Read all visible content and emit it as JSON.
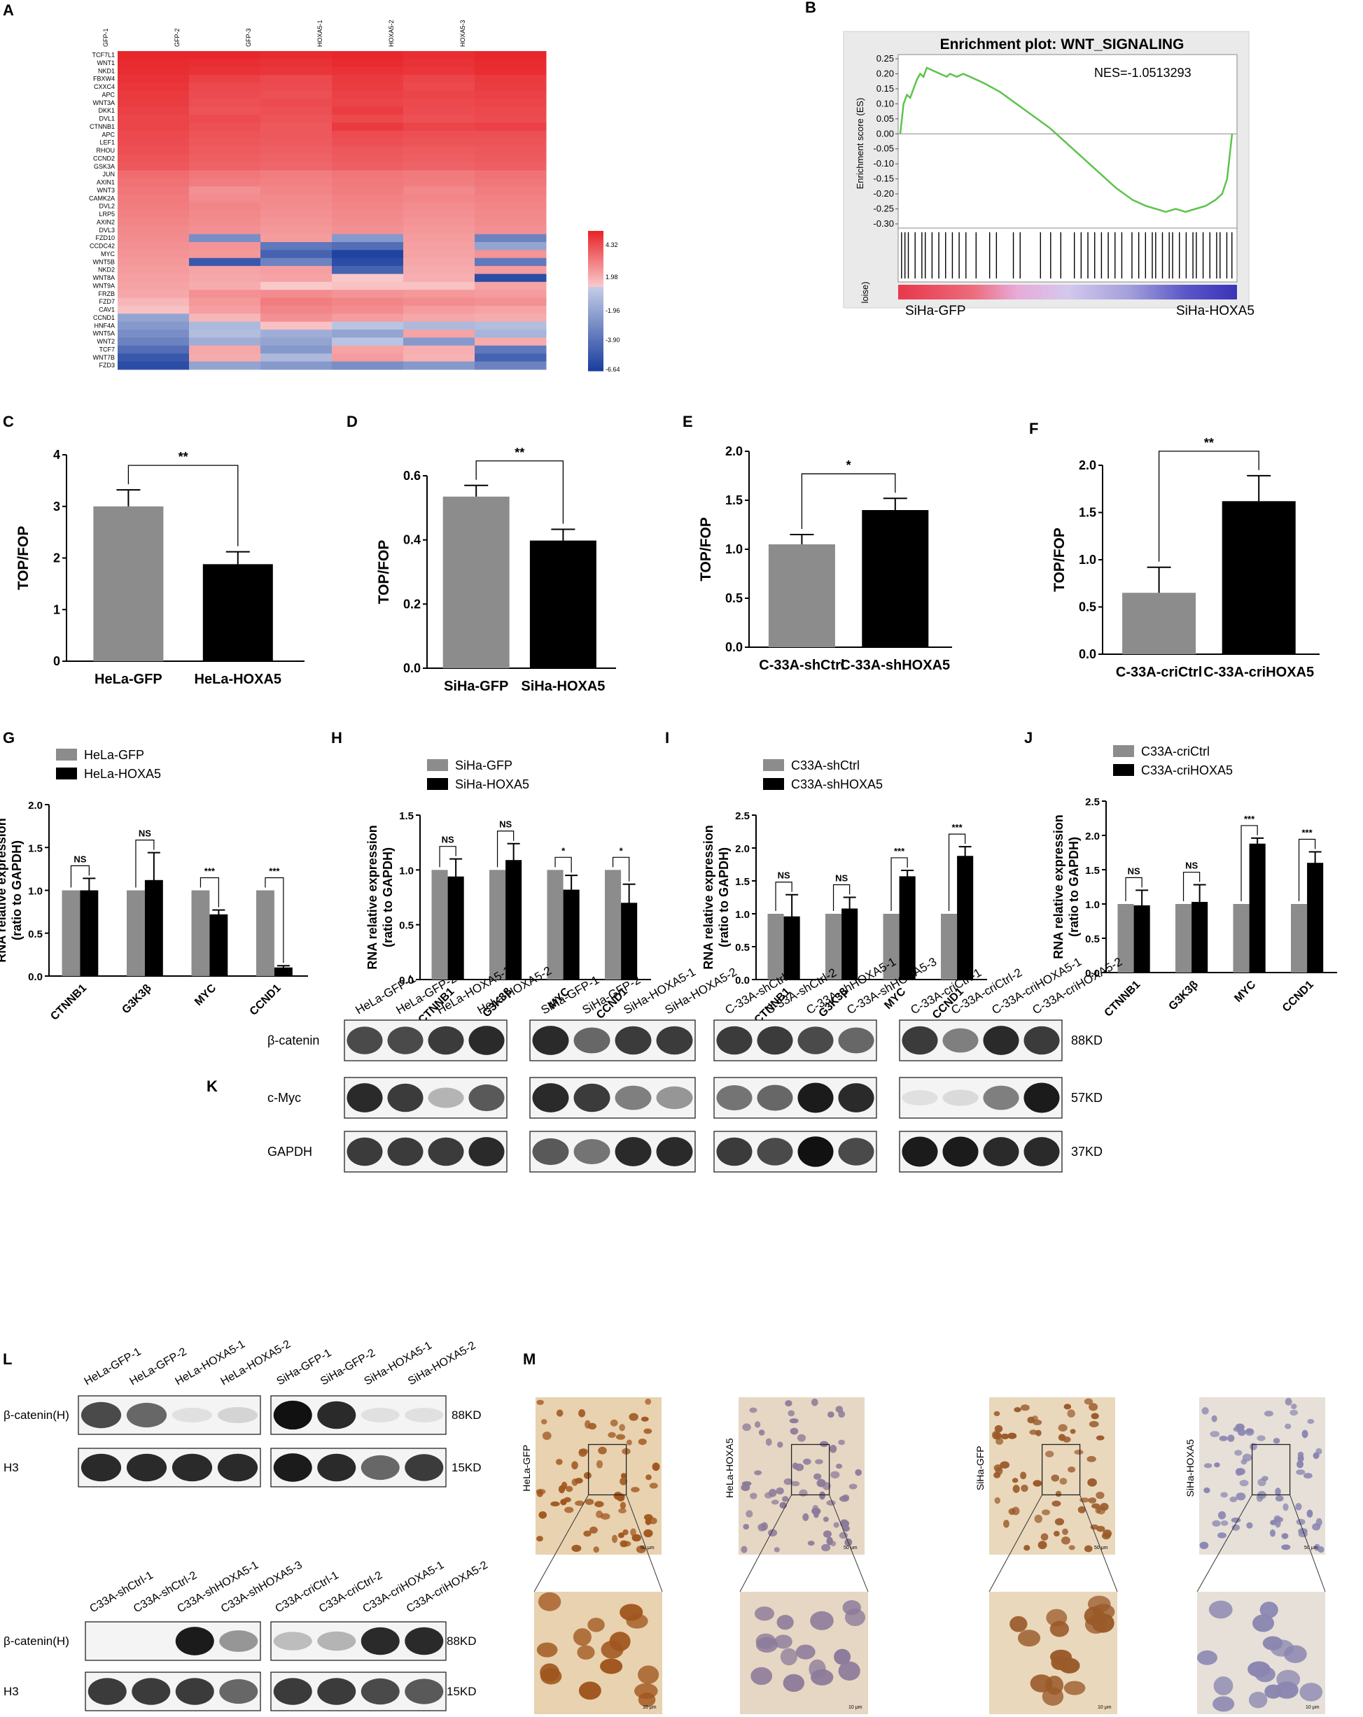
{
  "panel_labels": [
    "A",
    "B",
    "C",
    "D",
    "E",
    "F",
    "G",
    "H",
    "I",
    "J",
    "K",
    "L",
    "M"
  ],
  "heatmap": {
    "columns": [
      "GFP-1",
      "GFP-2",
      "GFP-3",
      "HOXA5-1",
      "HOXA5-2",
      "HOXA5-3"
    ],
    "genes": [
      "TCF7L1",
      "WNT1",
      "NKD1",
      "FBXW4",
      "CXXC4",
      "APC",
      "WNT3A",
      "DKK1",
      "DVL1",
      "CTNNB1",
      "APC",
      "LEF1",
      "RHOU",
      "CCND2",
      "GSK3A",
      "JUN",
      "AXIN1",
      "WNT3",
      "CAMK2A",
      "DVL2",
      "LRP5",
      "AXIN2",
      "DVL3",
      "FZD10",
      "CCDC42",
      "MYC",
      "WNT5B",
      "NKD2",
      "WNT8A",
      "WNT9A",
      "FRZB",
      "FZD7",
      "CAV1",
      "CCND1",
      "HNF4A",
      "WNT5A",
      "WNT2",
      "TCF7",
      "WNT7B",
      "FZD3"
    ],
    "values": [
      [
        4.3,
        4.3,
        4.2,
        4.3,
        4.1,
        4.3
      ],
      [
        4.2,
        4.1,
        4.0,
        4.2,
        4.0,
        4.2
      ],
      [
        4.1,
        4.0,
        3.9,
        4.0,
        3.9,
        4.1
      ],
      [
        4.0,
        3.6,
        3.4,
        3.8,
        3.5,
        3.8
      ],
      [
        3.9,
        3.4,
        3.3,
        3.7,
        3.4,
        3.7
      ],
      [
        3.8,
        3.3,
        3.2,
        3.6,
        3.5,
        3.6
      ],
      [
        3.7,
        3.2,
        3.3,
        3.5,
        3.4,
        3.5
      ],
      [
        3.6,
        3.1,
        3.2,
        3.7,
        3.3,
        3.4
      ],
      [
        3.5,
        3.3,
        3.1,
        3.4,
        3.2,
        3.3
      ],
      [
        3.5,
        3.2,
        3.0,
        3.8,
        3.5,
        3.6
      ],
      [
        3.4,
        3.1,
        3.0,
        3.3,
        3.2,
        3.2
      ],
      [
        3.3,
        3.0,
        2.9,
        3.2,
        3.1,
        3.1
      ],
      [
        3.2,
        2.9,
        2.8,
        3.0,
        2.9,
        3.0
      ],
      [
        3.1,
        2.8,
        2.7,
        2.9,
        2.8,
        2.9
      ],
      [
        3.0,
        2.7,
        2.6,
        2.8,
        2.7,
        2.8
      ],
      [
        2.5,
        2.2,
        2.0,
        2.2,
        2.1,
        2.3
      ],
      [
        2.3,
        2.0,
        1.9,
        2.1,
        2.0,
        2.2
      ],
      [
        2.2,
        1.5,
        1.8,
        2.0,
        1.7,
        2.0
      ],
      [
        2.1,
        1.6,
        1.7,
        1.9,
        1.8,
        1.9
      ],
      [
        2.0,
        1.8,
        1.6,
        1.8,
        1.6,
        1.8
      ],
      [
        1.9,
        1.7,
        1.5,
        1.7,
        1.5,
        1.7
      ],
      [
        1.8,
        1.6,
        1.4,
        1.6,
        1.4,
        1.6
      ],
      [
        1.7,
        1.5,
        1.3,
        1.5,
        1.3,
        1.5
      ],
      [
        1.6,
        -3.0,
        1.2,
        -2.5,
        1.2,
        -3.5
      ],
      [
        1.5,
        1.4,
        -4.0,
        -4.5,
        1.1,
        -2.0
      ],
      [
        1.4,
        1.3,
        -5.0,
        -6.5,
        1.0,
        1.4
      ],
      [
        1.3,
        -5.5,
        -3.5,
        -6.0,
        0.9,
        -4.0
      ],
      [
        1.2,
        1.0,
        1.1,
        -5.0,
        0.8,
        1.2
      ],
      [
        1.1,
        0.9,
        1.0,
        0.0,
        0.7,
        -6.0
      ],
      [
        1.0,
        0.8,
        0.0,
        0.2,
        0.2,
        1.0
      ],
      [
        0.9,
        1.5,
        1.6,
        1.4,
        1.3,
        1.2
      ],
      [
        0.5,
        1.3,
        2.0,
        1.8,
        1.6,
        1.5
      ],
      [
        0.2,
        1.1,
        1.8,
        1.6,
        1.2,
        1.0
      ],
      [
        -2.0,
        0.5,
        1.5,
        1.2,
        0.9,
        0.8
      ],
      [
        -2.5,
        -1.0,
        0.2,
        -0.5,
        -1.0,
        -0.8
      ],
      [
        -3.0,
        -0.8,
        -1.5,
        -2.0,
        1.0,
        -1.2
      ],
      [
        -3.5,
        -1.5,
        -2.0,
        -0.5,
        -2.5,
        0.8
      ],
      [
        -4.5,
        0.9,
        -2.5,
        1.0,
        0.7,
        -4.0
      ],
      [
        -5.5,
        0.8,
        -1.0,
        1.2,
        0.6,
        -5.0
      ],
      [
        -6.0,
        -2.0,
        -2.5,
        -3.0,
        -2.5,
        -3.5
      ]
    ],
    "colorbar_ticks": [
      "4.32",
      "1.98",
      "-1.96",
      "-3.90",
      "-6.64"
    ],
    "colors": {
      "high": "#e8262b",
      "mid": "#ffffff",
      "low": "#1c3f9f"
    }
  },
  "gsea": {
    "title": "Enrichment plot: WNT_SIGNALING",
    "nes": "NES=-1.0513293",
    "ylabel": "Enrichment score (ES)",
    "yticks": [
      "0.25",
      "0.20",
      "0.15",
      "0.10",
      "0.05",
      "0.00",
      "-0.05",
      "-0.10",
      "-0.15",
      "-0.20",
      "-0.25",
      "-0.30"
    ],
    "left_label": "SiHa-GFP",
    "right_label": "SiHa-HOXA5",
    "partial_label": "loise)",
    "curve_color": "#5dc34c"
  },
  "chart_data": [
    {
      "type": "bar",
      "panel": "C",
      "categories": [
        "HeLa-GFP",
        "HeLa-HOXA5"
      ],
      "values": [
        3.0,
        1.88
      ],
      "errors": [
        0.32,
        0.24
      ],
      "ylabel": "TOP/FOP",
      "ylim": [
        0,
        4
      ],
      "yticks": [
        "0",
        "1",
        "2",
        "3",
        "4"
      ],
      "significance": "**"
    },
    {
      "type": "bar",
      "panel": "D",
      "categories": [
        "SiHa-GFP",
        "SiHa-HOXA5"
      ],
      "values": [
        0.535,
        0.398
      ],
      "errors": [
        0.035,
        0.035
      ],
      "ylabel": "TOP/FOP",
      "ylim": [
        0,
        0.6
      ],
      "yticks": [
        "0.0",
        "0.2",
        "0.4",
        "0.6"
      ],
      "significance": "**"
    },
    {
      "type": "bar",
      "panel": "E",
      "categories": [
        "C-33A-shCtrl",
        "C-33A-shHOXA5"
      ],
      "values": [
        1.05,
        1.4
      ],
      "errors": [
        0.1,
        0.12
      ],
      "ylabel": "TOP/FOP",
      "ylim": [
        0,
        2.0
      ],
      "yticks": [
        "0.0",
        "0.5",
        "1.0",
        "1.5",
        "2.0"
      ],
      "significance": "*"
    },
    {
      "type": "bar",
      "panel": "F",
      "categories": [
        "C-33A-criCtrl",
        "C-33A-criHOXA5"
      ],
      "values": [
        0.65,
        1.62
      ],
      "errors": [
        0.27,
        0.27
      ],
      "ylabel": "TOP/FOP",
      "ylim": [
        0,
        2.0
      ],
      "yticks": [
        "0.0",
        "0.5",
        "1.0",
        "1.5",
        "2.0"
      ],
      "significance": "**"
    },
    {
      "type": "bar",
      "panel": "G",
      "categories": [
        "CTNNB1",
        "G3K3β",
        "MYC",
        "CCND1"
      ],
      "series": [
        {
          "name": "HeLa-GFP",
          "values": [
            1.0,
            1.0,
            1.0,
            1.0
          ],
          "errors": [
            0,
            0,
            0,
            0
          ]
        },
        {
          "name": "HeLa-HOXA5",
          "values": [
            1.0,
            1.12,
            0.72,
            0.1
          ],
          "errors": [
            0.14,
            0.32,
            0.05,
            0.02
          ]
        }
      ],
      "ylabel": "RNA relative expression",
      "ylabel2": "(ratio to GAPDH)",
      "ylim": [
        0,
        2.0
      ],
      "yticks": [
        "0.0",
        "0.5",
        "1.0",
        "1.5",
        "2.0"
      ],
      "significance": [
        "NS",
        "NS",
        "***",
        "***"
      ]
    },
    {
      "type": "bar",
      "panel": "H",
      "categories": [
        "CTNNB1",
        "G3K3β",
        "MYC",
        "CCND1"
      ],
      "series": [
        {
          "name": "SiHa-GFP",
          "values": [
            1.0,
            1.0,
            1.0,
            1.0
          ],
          "errors": [
            0,
            0,
            0,
            0
          ]
        },
        {
          "name": "SiHa-HOXA5",
          "values": [
            0.94,
            1.09,
            0.82,
            0.7
          ],
          "errors": [
            0.16,
            0.15,
            0.13,
            0.17
          ]
        }
      ],
      "ylabel": "RNA relative expression",
      "ylabel2": "(ratio to GAPDH)",
      "ylim": [
        0,
        1.5
      ],
      "yticks": [
        "0.0",
        "0.5",
        "1.0",
        "1.5"
      ],
      "significance": [
        "NS",
        "NS",
        "*",
        "*"
      ]
    },
    {
      "type": "bar",
      "panel": "I",
      "categories": [
        "CTNNB1",
        "G3K3β",
        "MYC",
        "CCND1"
      ],
      "series": [
        {
          "name": "C33A-shCtrl",
          "values": [
            1.0,
            1.0,
            1.0,
            1.0
          ],
          "errors": [
            0,
            0,
            0,
            0
          ]
        },
        {
          "name": "C33A-shHOXA5",
          "values": [
            0.96,
            1.08,
            1.57,
            1.88
          ],
          "errors": [
            0.33,
            0.17,
            0.09,
            0.14
          ]
        }
      ],
      "ylabel": "RNA relative expression",
      "ylabel2": "(ratio to GAPDH)",
      "ylim": [
        0,
        2.5
      ],
      "yticks": [
        "0.0",
        "0.5",
        "1.0",
        "1.5",
        "2.0",
        "2.5"
      ],
      "significance": [
        "NS",
        "NS",
        "***",
        "***"
      ]
    },
    {
      "type": "bar",
      "panel": "J",
      "categories": [
        "CTNNB1",
        "G3K3β",
        "MYC",
        "CCND1"
      ],
      "series": [
        {
          "name": "C33A-criCtrl",
          "values": [
            1.0,
            1.0,
            1.0,
            1.0
          ],
          "errors": [
            0,
            0,
            0,
            0
          ]
        },
        {
          "name": "C33A-criHOXA5",
          "values": [
            0.98,
            1.03,
            1.88,
            1.6
          ],
          "errors": [
            0.22,
            0.25,
            0.08,
            0.16
          ]
        }
      ],
      "ylabel": "RNA relative expression",
      "ylabel2": "(ratio to GAPDH)",
      "ylim": [
        0,
        2.5
      ],
      "yticks": [
        "0.0",
        "0.5",
        "1.0",
        "1.5",
        "2.0",
        "2.5"
      ],
      "significance": [
        "NS",
        "NS",
        "***",
        "***"
      ]
    }
  ],
  "bar_colors": {
    "gray": "#8c8c8c",
    "black": "#000000"
  },
  "blot_k": {
    "group_labels": [
      [
        "HeLa-GFP-1",
        "HeLa-GFP-2",
        "HeLa-HOXA5-1",
        "HeLa-HOXA5-2"
      ],
      [
        "SiHa-GFP-1",
        "SiHa-GFP-2",
        "SiHa-HOXA5-1",
        "SiHa-HOXA5-2"
      ],
      [
        "C-33A-shCtrl-1",
        "C-33A-shCtrl-2",
        "C-33A-shHOXA5-1",
        "C-33A-shHOXA5-3"
      ],
      [
        "C-33A-criCtrl-1",
        "C-33A-criCtrl-2",
        "C-33A-criHOXA5-1",
        "C-33A-criHOXA5-2"
      ]
    ],
    "rows": [
      "β-catenin",
      "c-Myc",
      "GAPDH"
    ],
    "sizes": [
      "88KD",
      "57KD",
      "37KD"
    ],
    "intensity": [
      [
        [
          0.8,
          0.8,
          0.85,
          0.9
        ],
        [
          0.9,
          0.7,
          0.85,
          0.85
        ],
        [
          0.85,
          0.85,
          0.8,
          0.7
        ],
        [
          0.85,
          0.6,
          0.9,
          0.85
        ]
      ],
      [
        [
          0.9,
          0.85,
          0.35,
          0.75
        ],
        [
          0.9,
          0.85,
          0.6,
          0.5
        ],
        [
          0.65,
          0.7,
          0.95,
          0.9
        ],
        [
          0.05,
          0.1,
          0.6,
          0.95
        ]
      ],
      [
        [
          0.85,
          0.85,
          0.85,
          0.9
        ],
        [
          0.75,
          0.65,
          0.9,
          0.9
        ],
        [
          0.85,
          0.8,
          0.98,
          0.8
        ],
        [
          0.95,
          0.95,
          0.9,
          0.9
        ]
      ]
    ]
  },
  "blot_l": {
    "top_labels": [
      [
        "HeLa-GFP-1",
        "HeLa-GFP-2",
        "HeLa-HOXA5-1",
        "HeLa-HOXA5-2"
      ],
      [
        "SiHa-GFP-1",
        "SiHa-GFP-2",
        "SiHa-HOXA5-1",
        "SiHa-HOXA5-2"
      ]
    ],
    "bottom_labels": [
      [
        "C33A-shCtrl-1",
        "C33A-shCtrl-2",
        "C33A-shHOXA5-1",
        "C33A-shHOXA5-3"
      ],
      [
        "C33A-criCtrl-1",
        "C33A-criCtrl-2",
        "C33A-criHOXA5-1",
        "C33A-criHOXA5-2"
      ]
    ],
    "rows": [
      "β-catenin(H)",
      "H3"
    ],
    "sizes": [
      "88KD",
      "15KD"
    ],
    "intensity_top": [
      [
        [
          0.8,
          0.7,
          0.05,
          0.15
        ],
        [
          0.98,
          0.9,
          0.05,
          0.05
        ]
      ],
      [
        [
          0.9,
          0.9,
          0.9,
          0.9
        ],
        [
          0.95,
          0.9,
          0.7,
          0.85
        ]
      ]
    ],
    "intensity_bottom": [
      [
        [
          0.0,
          0.0,
          0.95,
          0.5
        ],
        [
          0.3,
          0.35,
          0.9,
          0.9
        ]
      ],
      [
        [
          0.85,
          0.85,
          0.85,
          0.7
        ],
        [
          0.85,
          0.85,
          0.8,
          0.75
        ]
      ]
    ]
  },
  "ihc": {
    "labels": [
      "HeLa-GFP",
      "HeLa-HOXA5",
      "SiHa-GFP",
      "SiHa-HOXA5"
    ],
    "scale_top": "50 μm",
    "scale_bottom": "10 μm",
    "nucleus_colors": [
      "#a0561e",
      "#8c7a9a",
      "#9a5a2a",
      "#8a86b0"
    ],
    "bg_colors": [
      "#e8d2b0",
      "#e6d7c4",
      "#ead8bc",
      "#e6e0d8"
    ]
  }
}
